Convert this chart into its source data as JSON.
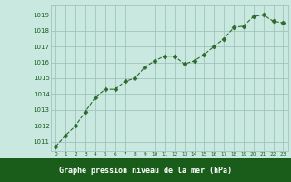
{
  "x": [
    0,
    1,
    2,
    3,
    4,
    5,
    6,
    7,
    8,
    9,
    10,
    11,
    12,
    13,
    14,
    15,
    16,
    17,
    18,
    19,
    20,
    21,
    22,
    23
  ],
  "y": [
    1010.7,
    1011.4,
    1012.0,
    1012.9,
    1013.8,
    1014.3,
    1014.3,
    1014.8,
    1015.0,
    1015.7,
    1016.1,
    1016.4,
    1016.4,
    1015.9,
    1016.1,
    1016.5,
    1017.0,
    1017.5,
    1018.2,
    1018.3,
    1018.9,
    1019.0,
    1018.6,
    1018.5
  ],
  "line_color": "#2d6a2d",
  "marker": "D",
  "marker_size": 2.5,
  "bg_color": "#c8e8e0",
  "plot_bg_color": "#c8e8e0",
  "grid_color": "#a0c4bc",
  "tick_color": "#1a5c1a",
  "xlabel": "Graphe pression niveau de la mer (hPa)",
  "xlabel_bg_color": "#1a5c1a",
  "xlabel_text_color": "#ffffff",
  "ylabel_ticks": [
    1011,
    1012,
    1013,
    1014,
    1015,
    1016,
    1017,
    1018,
    1019
  ],
  "xlim": [
    -0.5,
    23.5
  ],
  "ylim": [
    1010.4,
    1019.6
  ],
  "fig_width": 3.2,
  "fig_height": 2.0,
  "dpi": 100
}
